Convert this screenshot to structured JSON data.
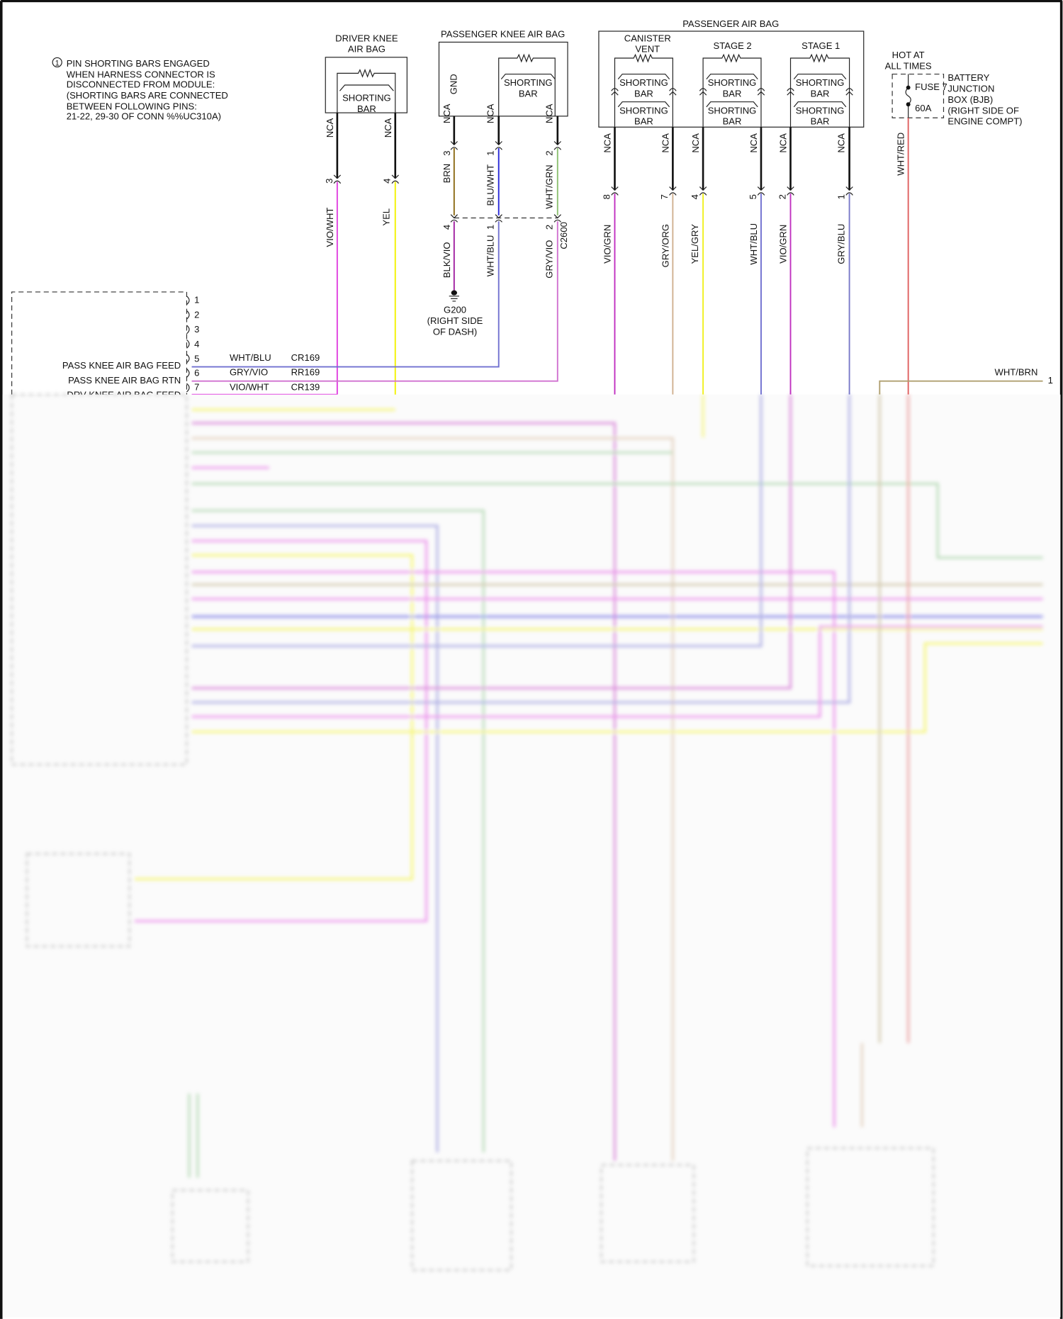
{
  "note": {
    "marker": "1",
    "lines": [
      "PIN SHORTING BARS ENGAGED",
      "WHEN HARNESS CONNECTOR IS",
      "DISCONNECTED FROM MODULE:",
      "(SHORTING BARS ARE CONNECTED",
      "BETWEEN FOLLOWING PINS:",
      "21-22, 29-30 OF CONN %%UC310A)"
    ]
  },
  "driver_knee": {
    "title": [
      "DRIVER KNEE",
      "AIR BAG"
    ],
    "shorting": [
      "SHORTING",
      "BAR"
    ],
    "nca": "NCA",
    "pins": [
      "3",
      "4"
    ],
    "wires": [
      "VIO/WHT",
      "YEL"
    ]
  },
  "pass_knee": {
    "title": "PASSENGER KNEE AIR BAG",
    "gnd": "GND",
    "shorting": [
      "SHORTING",
      "BAR"
    ],
    "nca": "NCA",
    "pins_top": [
      "3",
      "1",
      "2"
    ],
    "wires_top": [
      "BRN",
      "BLU/WHT",
      "WHT/GRN"
    ],
    "connector": "C2600",
    "pins_bottom": [
      "4",
      "1",
      "2"
    ],
    "wires_bottom": [
      "BLK/VIO",
      "WHT/BLU",
      "GRY/VIO"
    ],
    "ground": [
      "G200",
      "(RIGHT SIDE",
      "OF DASH)"
    ]
  },
  "pass_airbag": {
    "title": "PASSENGER AIR BAG",
    "sections": [
      "CANISTER",
      "VENT",
      "STAGE 2",
      "STAGE 1"
    ],
    "shorting": [
      "SHORTING",
      "BAR"
    ],
    "nca": "NCA",
    "pins": [
      "8",
      "7",
      "4",
      "5",
      "2",
      "1"
    ],
    "wires": [
      "VIO/GRN",
      "GRY/ORG",
      "YEL/GRY",
      "WHT/BLU",
      "VIO/GRN",
      "GRY/BLU"
    ]
  },
  "power": {
    "hot": [
      "HOT AT",
      "ALL TIMES"
    ],
    "fuse": "FUSE 7",
    "amps": "60A",
    "bjb": [
      "BATTERY",
      "JUNCTION",
      "BOX (BJB)",
      "(RIGHT SIDE OF",
      "ENGINE COMPT)"
    ],
    "wire": "WHT/RED"
  },
  "right_feed": {
    "wire": "WHT/BRN",
    "pin": "1"
  },
  "module": {
    "pins": [
      "1",
      "2",
      "3",
      "4",
      "5",
      "6",
      "7"
    ],
    "labels": [
      "PASS KNEE AIR BAG FEED",
      "PASS KNEE AIR BAG RTN",
      "DRV KNEE AIR BAG FEED"
    ],
    "rows": [
      {
        "color": "WHT/BLU",
        "circuit": "CR169"
      },
      {
        "color": "GRY/VIO",
        "circuit": "RR169"
      },
      {
        "color": "VIO/WHT",
        "circuit": "CR139"
      }
    ]
  },
  "colors": {
    "vio_wht": "#e040e0",
    "yel": "#f2f200",
    "brn": "#8b6914",
    "blu_wht": "#2828d8",
    "wht_grn": "#8cc070",
    "blk_vio": "#a020a0",
    "wht_blu": "#7070d0",
    "gry_vio": "#d070d0",
    "vio_grn": "#c030c0",
    "gry_org": "#d0b090",
    "yel_gry": "#f0f020",
    "gry_blu": "#7878c8",
    "wht_red": "#e06060",
    "wht_brn": "#b0a070",
    "green": "#80c080"
  }
}
